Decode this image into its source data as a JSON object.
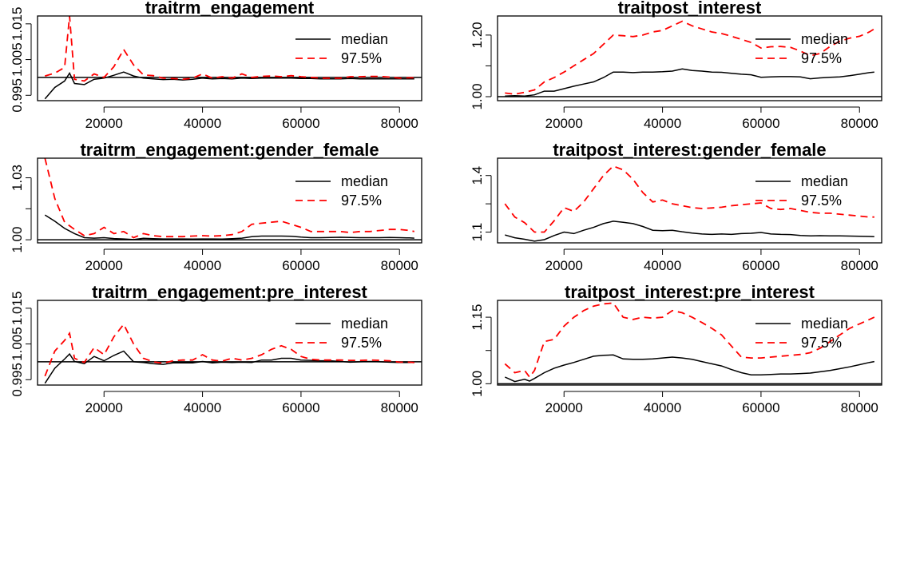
{
  "legend_labels": {
    "median": "median",
    "upper": "97.5%"
  },
  "colors": {
    "median": "#000000",
    "upper": "#ff0000",
    "reference": "#000000"
  },
  "chart_data": [
    {
      "type": "line",
      "title": "traitrm_engagement",
      "xlabel": "",
      "ylabel": "",
      "xlim": [
        6500,
        84500
      ],
      "ylim": [
        0.9935,
        1.0172
      ],
      "x_ticks": [
        20000,
        40000,
        60000,
        80000
      ],
      "x_tick_labels": [
        "20000",
        "40000",
        "60000",
        "80000"
      ],
      "y_ticks": [
        0.995,
        1.005,
        1.015
      ],
      "y_tick_labels": [
        "0.995",
        "1.005",
        "1.015"
      ],
      "reference_line": 1.0,
      "legend_position": "top-right",
      "x": [
        8000,
        10000,
        12000,
        13000,
        14000,
        16000,
        18000,
        20000,
        22000,
        24000,
        26000,
        28000,
        30000,
        32000,
        34000,
        36000,
        38000,
        40000,
        42000,
        44000,
        46000,
        48000,
        50000,
        52000,
        54000,
        56000,
        58000,
        60000,
        62000,
        64000,
        66000,
        68000,
        70000,
        72000,
        74000,
        76000,
        78000,
        80000,
        82000,
        83000
      ],
      "series": [
        {
          "name": "median",
          "values": [
            0.994,
            0.9972,
            0.999,
            1.0012,
            0.9983,
            0.998,
            0.9995,
            0.9998,
            1.0006,
            1.0015,
            1.0004,
            0.9998,
            0.9996,
            0.9994,
            0.9995,
            0.9993,
            0.9995,
            0.9998,
            0.9996,
            0.9997,
            0.9996,
            0.9998,
            0.9997,
            0.9998,
            0.9998,
            0.9998,
            0.9998,
            0.9997,
            0.9997,
            0.9996,
            0.9996,
            0.9996,
            0.9997,
            0.9996,
            0.9996,
            0.9996,
            0.9996,
            0.9996,
            0.9996,
            0.9996
          ]
        },
        {
          "name": "97.5%",
          "values": [
            1.0004,
            1.0012,
            1.0028,
            1.0172,
            0.9995,
            0.999,
            1.001,
            1.0,
            1.003,
            1.0078,
            1.0035,
            1.0007,
            1.0005,
            0.9998,
            0.9997,
            0.9995,
            0.9998,
            1.001,
            0.9998,
            1.0002,
            0.9998,
            1.001,
            1.0,
            1.0003,
            1.0004,
            1.0002,
            1.0005,
            1.0002,
            1.0,
            0.9998,
            0.9998,
            0.9998,
            1.0002,
            1.0002,
            1.0003,
            1.0003,
            1.0001,
            0.9998,
            0.9999,
            0.9999
          ]
        }
      ]
    },
    {
      "type": "line",
      "title": "traitpost_interest",
      "xlabel": "",
      "ylabel": "",
      "xlim": [
        6500,
        84500
      ],
      "ylim": [
        0.987,
        1.262
      ],
      "x_ticks": [
        20000,
        40000,
        60000,
        80000
      ],
      "x_tick_labels": [
        "20000",
        "40000",
        "60000",
        "80000"
      ],
      "y_ticks": [
        1.0,
        1.1,
        1.2
      ],
      "y_tick_labels": [
        "1.00",
        "",
        "1.20"
      ],
      "reference_line": 1.0,
      "legend_position": "top-right",
      "x": [
        8000,
        10000,
        12000,
        14000,
        16000,
        18000,
        20000,
        22000,
        24000,
        26000,
        28000,
        30000,
        32000,
        34000,
        36000,
        38000,
        40000,
        42000,
        44000,
        46000,
        48000,
        50000,
        52000,
        54000,
        56000,
        58000,
        60000,
        62000,
        64000,
        66000,
        68000,
        70000,
        72000,
        74000,
        76000,
        78000,
        80000,
        82000,
        83000
      ],
      "series": [
        {
          "name": "median",
          "values": [
            1.002,
            1.003,
            1.002,
            1.006,
            1.018,
            1.018,
            1.026,
            1.034,
            1.041,
            1.048,
            1.062,
            1.08,
            1.08,
            1.078,
            1.08,
            1.08,
            1.081,
            1.083,
            1.09,
            1.085,
            1.083,
            1.08,
            1.079,
            1.076,
            1.073,
            1.071,
            1.063,
            1.064,
            1.065,
            1.065,
            1.064,
            1.058,
            1.061,
            1.063,
            1.064,
            1.068,
            1.073,
            1.078,
            1.08
          ]
        },
        {
          "name": "97.5%",
          "values": [
            1.012,
            1.008,
            1.014,
            1.022,
            1.048,
            1.062,
            1.08,
            1.1,
            1.12,
            1.14,
            1.17,
            1.2,
            1.198,
            1.195,
            1.2,
            1.21,
            1.215,
            1.23,
            1.245,
            1.23,
            1.22,
            1.21,
            1.205,
            1.196,
            1.186,
            1.176,
            1.158,
            1.162,
            1.163,
            1.16,
            1.148,
            1.133,
            1.14,
            1.163,
            1.18,
            1.19,
            1.196,
            1.21,
            1.22
          ]
        }
      ]
    },
    {
      "type": "line",
      "title": "traitrm_engagement:gender_female",
      "xlabel": "",
      "ylabel": "",
      "xlim": [
        6500,
        84500
      ],
      "ylim": [
        0.9985,
        1.0395
      ],
      "x_ticks": [
        20000,
        40000,
        60000,
        80000
      ],
      "x_tick_labels": [
        "20000",
        "40000",
        "60000",
        "80000"
      ],
      "y_ticks": [
        1.0,
        1.015,
        1.03
      ],
      "y_tick_labels": [
        "1.00",
        "",
        "1.03"
      ],
      "reference_line": 1.0,
      "legend_position": "top-right",
      "x": [
        8000,
        10000,
        12000,
        14000,
        16000,
        18000,
        20000,
        22000,
        24000,
        26000,
        28000,
        30000,
        32000,
        34000,
        36000,
        38000,
        40000,
        42000,
        44000,
        46000,
        48000,
        50000,
        52000,
        54000,
        56000,
        58000,
        60000,
        62000,
        64000,
        66000,
        68000,
        70000,
        72000,
        74000,
        76000,
        78000,
        80000,
        82000,
        83000
      ],
      "series": [
        {
          "name": "median",
          "values": [
            1.012,
            1.009,
            1.0055,
            1.003,
            1.001,
            1.0008,
            1.001,
            1.0006,
            1.0004,
            1.0001,
            1.0007,
            1.0005,
            1.0004,
            1.0004,
            1.0004,
            1.0003,
            1.0004,
            1.0004,
            1.0003,
            1.0005,
            1.0008,
            1.0015,
            1.0018,
            1.0018,
            1.0018,
            1.0017,
            1.0013,
            1.001,
            1.001,
            1.0011,
            1.0012,
            1.0011,
            1.001,
            1.001,
            1.001,
            1.0011,
            1.001,
            1.0009,
            1.0008
          ]
        },
        {
          "name": "97.5%",
          "values": [
            1.0395,
            1.02,
            1.0085,
            1.005,
            1.002,
            1.003,
            1.006,
            1.003,
            1.004,
            1.001,
            1.003,
            1.002,
            1.0015,
            1.0015,
            1.0015,
            1.0018,
            1.002,
            1.0018,
            1.002,
            1.0025,
            1.004,
            1.0075,
            1.008,
            1.0085,
            1.009,
            1.0075,
            1.006,
            1.004,
            1.004,
            1.004,
            1.004,
            1.0035,
            1.004,
            1.004,
            1.0045,
            1.005,
            1.005,
            1.0045,
            1.004
          ]
        }
      ]
    },
    {
      "type": "line",
      "title": "traitpost_interest:gender_female",
      "xlabel": "",
      "ylabel": "",
      "xlim": [
        6500,
        84500
      ],
      "ylim": [
        1.043,
        1.492
      ],
      "x_ticks": [
        20000,
        40000,
        60000,
        80000
      ],
      "x_tick_labels": [
        "20000",
        "40000",
        "60000",
        "80000"
      ],
      "y_ticks": [
        1.1,
        1.25,
        1.4
      ],
      "y_tick_labels": [
        "1.1",
        "",
        "1.4"
      ],
      "reference_line": 1.0,
      "legend_position": "top-right",
      "x": [
        8000,
        10000,
        12000,
        14000,
        16000,
        18000,
        20000,
        22000,
        24000,
        26000,
        28000,
        30000,
        32000,
        34000,
        36000,
        38000,
        40000,
        42000,
        44000,
        46000,
        48000,
        50000,
        52000,
        54000,
        56000,
        58000,
        60000,
        62000,
        64000,
        66000,
        68000,
        70000,
        72000,
        74000,
        76000,
        78000,
        80000,
        82000,
        83000
      ],
      "series": [
        {
          "name": "median",
          "values": [
            1.085,
            1.07,
            1.062,
            1.052,
            1.06,
            1.082,
            1.1,
            1.092,
            1.11,
            1.125,
            1.145,
            1.158,
            1.152,
            1.145,
            1.13,
            1.11,
            1.108,
            1.11,
            1.102,
            1.095,
            1.09,
            1.088,
            1.09,
            1.088,
            1.092,
            1.094,
            1.098,
            1.09,
            1.088,
            1.087,
            1.082,
            1.08,
            1.081,
            1.08,
            1.08,
            1.079,
            1.078,
            1.077,
            1.076
          ]
        },
        {
          "name": "97.5%",
          "values": [
            1.25,
            1.18,
            1.15,
            1.1,
            1.1,
            1.16,
            1.23,
            1.21,
            1.26,
            1.33,
            1.4,
            1.45,
            1.43,
            1.38,
            1.31,
            1.26,
            1.27,
            1.25,
            1.24,
            1.23,
            1.225,
            1.228,
            1.232,
            1.24,
            1.245,
            1.25,
            1.255,
            1.225,
            1.22,
            1.225,
            1.215,
            1.205,
            1.2,
            1.2,
            1.195,
            1.19,
            1.185,
            1.18,
            1.18
          ]
        }
      ]
    },
    {
      "type": "line",
      "title": "traitrm_engagement:pre_interest",
      "xlabel": "",
      "ylabel": "",
      "xlim": [
        6500,
        84500
      ],
      "ylim": [
        0.9935,
        1.0172
      ],
      "x_ticks": [
        20000,
        40000,
        60000,
        80000
      ],
      "x_tick_labels": [
        "20000",
        "40000",
        "60000",
        "80000"
      ],
      "y_ticks": [
        0.995,
        1.005,
        1.015
      ],
      "y_tick_labels": [
        "0.995",
        "1.005",
        "1.015"
      ],
      "reference_line": 1.0,
      "legend_position": "top-right",
      "x": [
        8000,
        10000,
        12000,
        13000,
        14000,
        16000,
        18000,
        20000,
        22000,
        24000,
        26000,
        28000,
        30000,
        32000,
        34000,
        36000,
        38000,
        40000,
        42000,
        44000,
        46000,
        48000,
        50000,
        52000,
        54000,
        56000,
        58000,
        60000,
        62000,
        64000,
        66000,
        68000,
        70000,
        72000,
        74000,
        76000,
        78000,
        80000,
        82000,
        83000
      ],
      "series": [
        {
          "name": "median",
          "values": [
            0.994,
            0.9982,
            1.0008,
            1.0022,
            1.0001,
            0.9995,
            1.0015,
            1.0003,
            1.0018,
            1.003,
            1.0,
            0.9998,
            0.9995,
            0.9993,
            0.9997,
            0.9997,
            0.9997,
            1.0001,
            0.9997,
            0.9999,
            0.9998,
            0.9999,
            0.9998,
            1.0005,
            1.0005,
            1.001,
            1.001,
            1.0005,
            1.0004,
            1.0003,
            1.0003,
            1.0001,
            0.9999,
            1.0,
            1.0001,
            1.0,
            0.9999,
            0.9998,
            0.9998,
            0.9998
          ]
        },
        {
          "name": "97.5%",
          "values": [
            0.996,
            1.003,
            1.006,
            1.008,
            1.001,
            0.9998,
            1.004,
            1.002,
            1.007,
            1.0105,
            1.005,
            1.001,
            1.0,
            0.9996,
            1.0003,
            1.0005,
            1.0005,
            1.002,
            1.0005,
            1.0002,
            1.001,
            1.0005,
            1.001,
            1.002,
            1.0035,
            1.0045,
            1.0035,
            1.0015,
            1.0007,
            1.0005,
            1.0005,
            1.0005,
            1.0004,
            1.0004,
            1.0005,
            1.0004,
            1.0003,
            0.9999,
            0.9999,
            0.9998
          ]
        }
      ]
    },
    {
      "type": "line",
      "title": "traitpost_interest:pre_interest",
      "xlabel": "",
      "ylabel": "",
      "xlim": [
        6500,
        84500
      ],
      "ylim": [
        0.997,
        1.188
      ],
      "x_ticks": [
        20000,
        40000,
        60000,
        80000
      ],
      "x_tick_labels": [
        "20000",
        "40000",
        "60000",
        "80000"
      ],
      "y_ticks": [
        1.0,
        1.075,
        1.15
      ],
      "y_tick_labels": [
        "1.00",
        "",
        "1.15"
      ],
      "reference_line": 1.0,
      "legend_position": "top-right",
      "x": [
        8000,
        10000,
        12000,
        13000,
        14000,
        16000,
        18000,
        20000,
        22000,
        24000,
        26000,
        28000,
        30000,
        32000,
        34000,
        36000,
        38000,
        40000,
        42000,
        44000,
        46000,
        48000,
        50000,
        52000,
        54000,
        56000,
        58000,
        60000,
        62000,
        64000,
        66000,
        68000,
        70000,
        72000,
        74000,
        76000,
        78000,
        80000,
        82000,
        83000
      ],
      "series": [
        {
          "name": "median",
          "values": [
            1.015,
            1.005,
            1.01,
            1.006,
            1.012,
            1.025,
            1.035,
            1.042,
            1.048,
            1.055,
            1.062,
            1.064,
            1.065,
            1.056,
            1.055,
            1.055,
            1.056,
            1.058,
            1.06,
            1.058,
            1.055,
            1.05,
            1.045,
            1.04,
            1.032,
            1.025,
            1.02,
            1.02,
            1.021,
            1.022,
            1.022,
            1.023,
            1.024,
            1.027,
            1.03,
            1.034,
            1.038,
            1.043,
            1.048,
            1.05
          ]
        },
        {
          "name": "97.5%",
          "values": [
            1.045,
            1.025,
            1.03,
            1.015,
            1.03,
            1.095,
            1.1,
            1.13,
            1.15,
            1.165,
            1.175,
            1.18,
            1.182,
            1.15,
            1.145,
            1.15,
            1.148,
            1.15,
            1.165,
            1.16,
            1.15,
            1.138,
            1.125,
            1.11,
            1.085,
            1.06,
            1.058,
            1.058,
            1.06,
            1.062,
            1.064,
            1.066,
            1.07,
            1.08,
            1.095,
            1.11,
            1.125,
            1.135,
            1.145,
            1.15
          ]
        }
      ]
    }
  ]
}
